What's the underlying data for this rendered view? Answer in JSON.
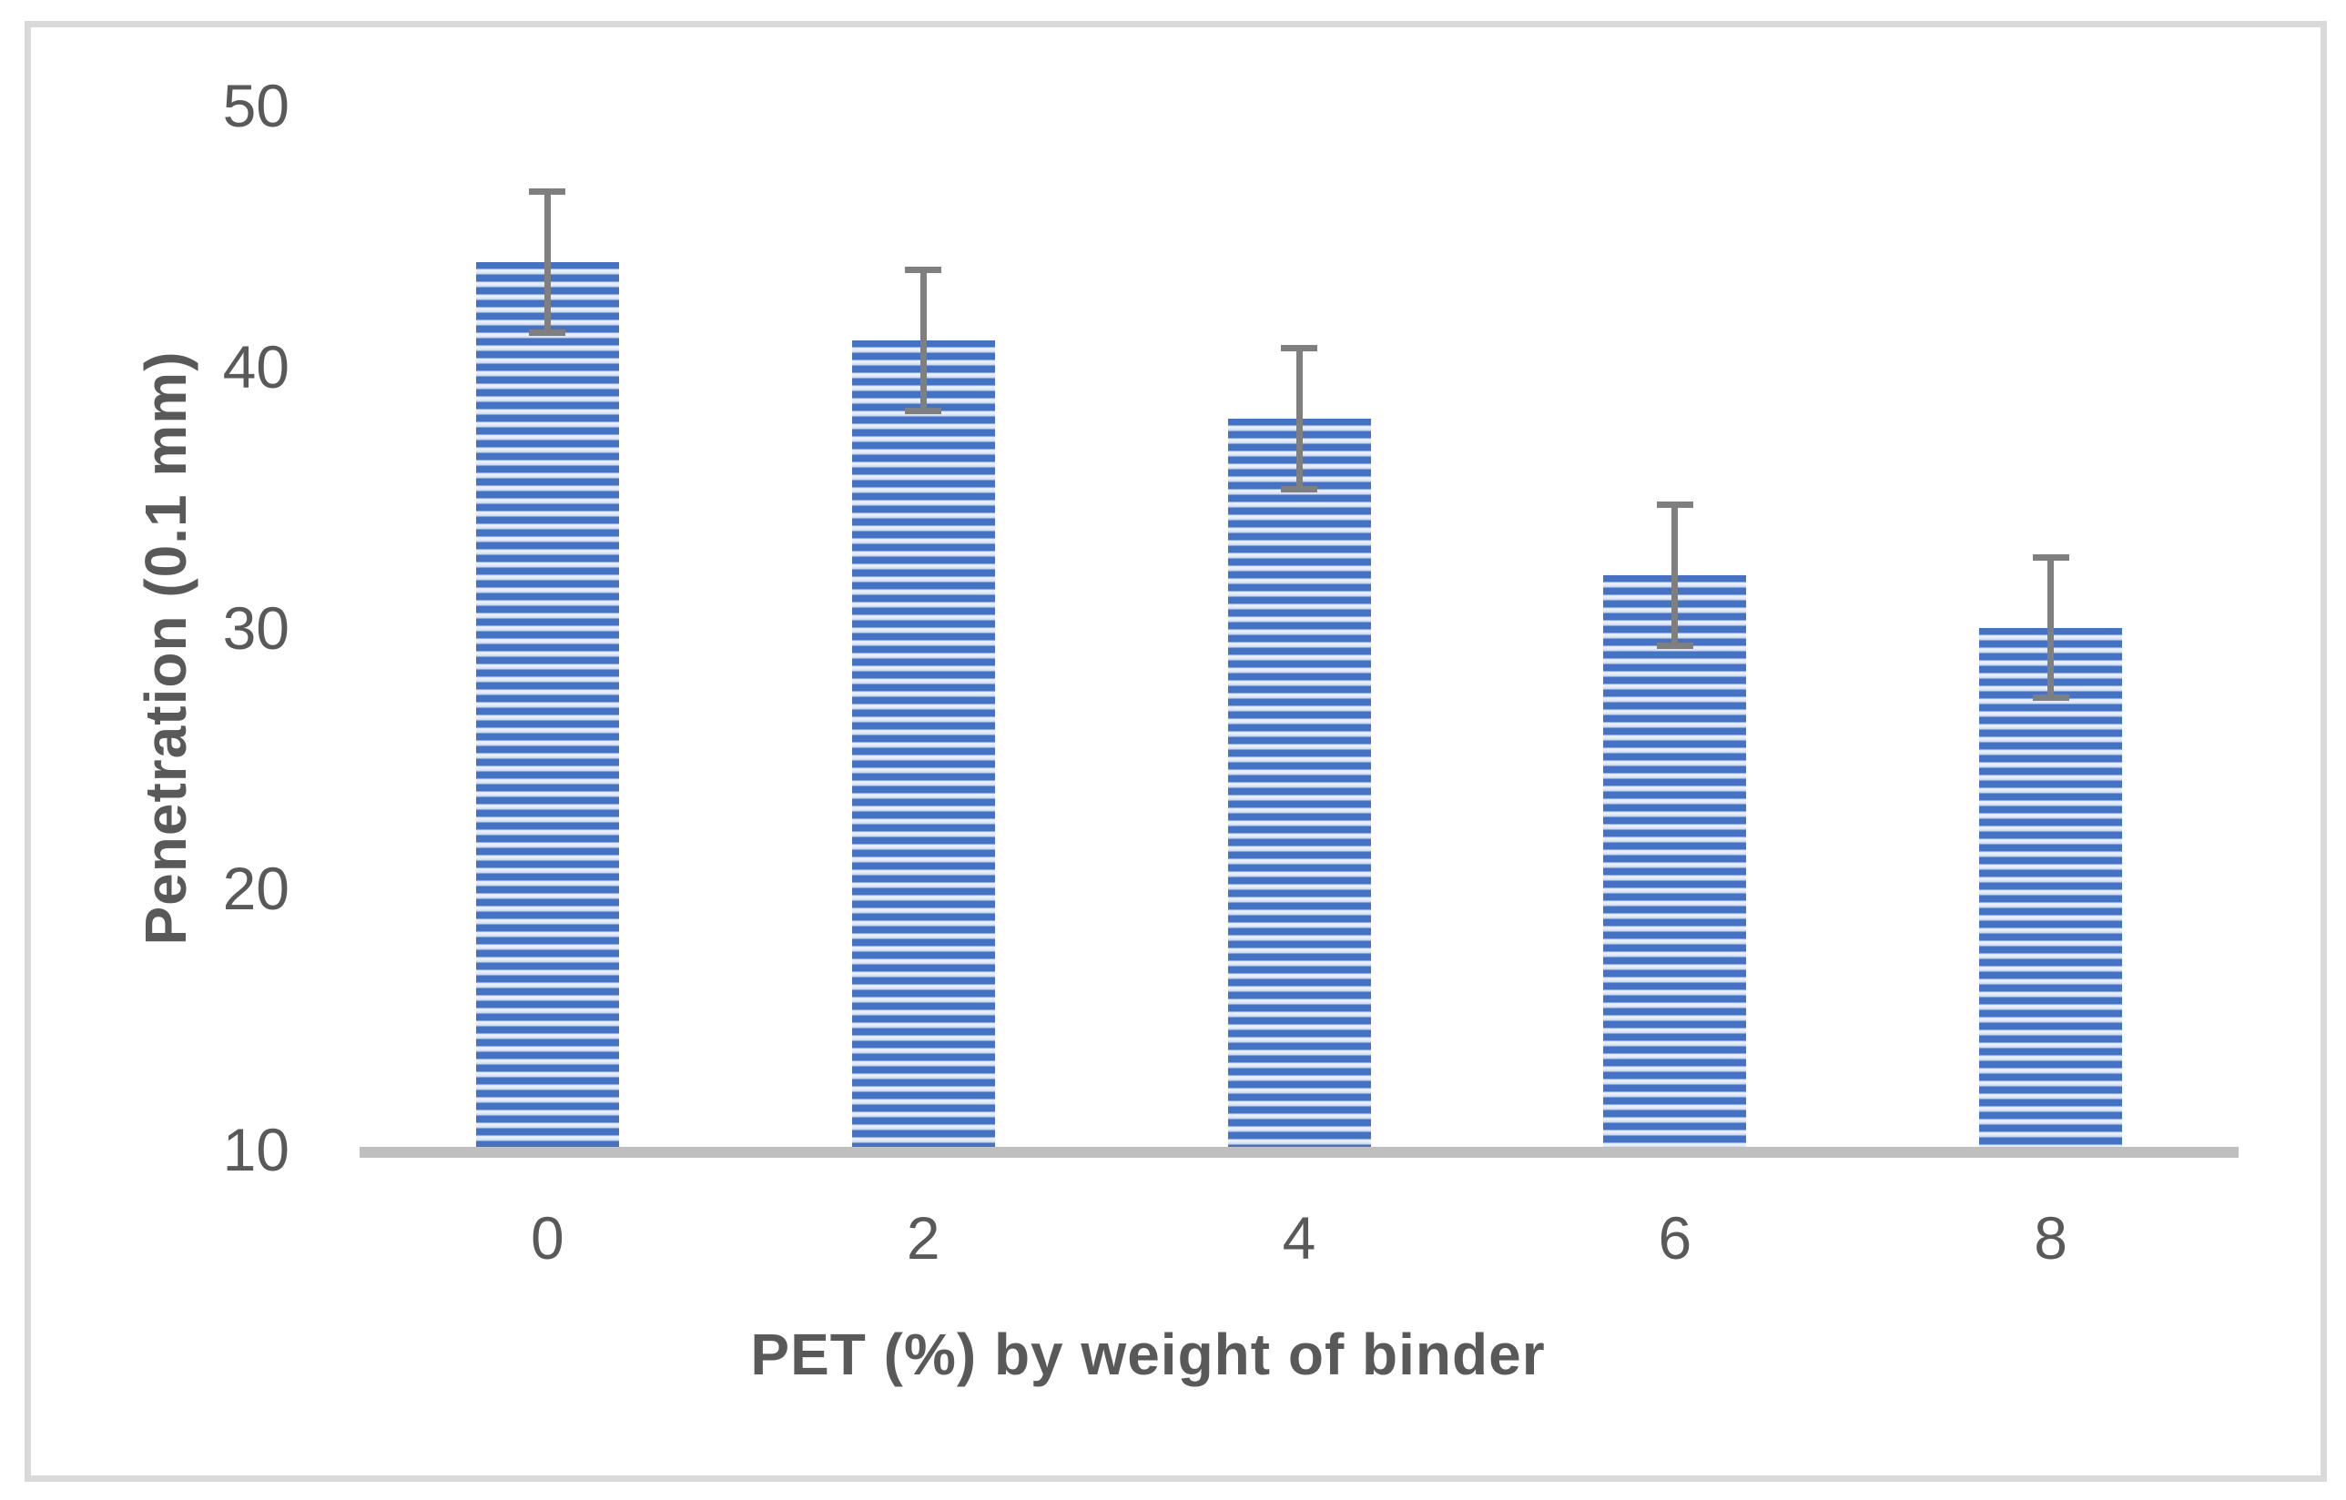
{
  "chart_data": {
    "type": "bar",
    "title": "",
    "xlabel": "PET (%) by weight of binder",
    "ylabel": "Penetration (0.1 mm)",
    "categories": [
      "0",
      "2",
      "4",
      "6",
      "8"
    ],
    "values": [
      44,
      41,
      38,
      32,
      30
    ],
    "error_bars": [
      2.7,
      2.7,
      2.7,
      2.7,
      2.7
    ],
    "yticks": [
      50,
      40,
      30,
      20,
      10
    ],
    "ylim": [
      10,
      50
    ],
    "grid": false,
    "legend": false,
    "bar_fill_style": "horizontal-stripes",
    "colors": {
      "bar_blue": "#4472c4",
      "bar_stripe_light": "#dce6f6",
      "bar_stripe_highlight": "#eef3fb",
      "bar_stripe_shade": "#c9d6ee",
      "error_bar": "#7f7f7f",
      "axis_line": "#bfbfbf",
      "text": "#595959",
      "frame_border": "#d9d9d9",
      "background": "#ffffff"
    }
  }
}
